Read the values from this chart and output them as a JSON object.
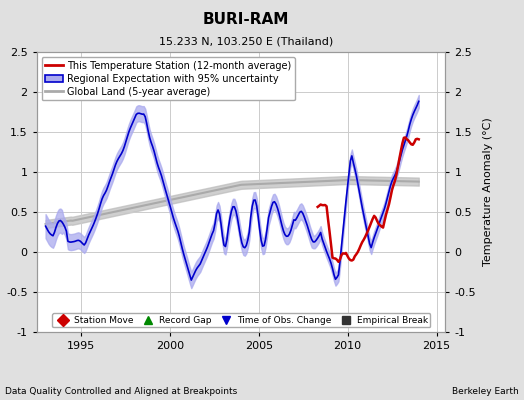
{
  "title": "BURI-RAM",
  "subtitle": "15.233 N, 103.250 E (Thailand)",
  "ylabel": "Temperature Anomaly (°C)",
  "xlabel_left": "Data Quality Controlled and Aligned at Breakpoints",
  "xlabel_right": "Berkeley Earth",
  "ylim": [
    -1.0,
    2.5
  ],
  "xlim": [
    1992.5,
    2015.5
  ],
  "xticks": [
    1995,
    2000,
    2005,
    2010,
    2015
  ],
  "yticks": [
    -1.0,
    -0.5,
    0.0,
    0.5,
    1.0,
    1.5,
    2.0,
    2.5
  ],
  "bg_color": "#e0e0e0",
  "plot_bg_color": "#ffffff",
  "grid_color": "#cccccc",
  "blue_line_color": "#0000cc",
  "blue_fill_color": "#aaaaee",
  "red_line_color": "#cc0000",
  "gray_line_color": "#aaaaaa",
  "legend1_items": [
    "This Temperature Station (12-month average)",
    "Regional Expectation with 95% uncertainty",
    "Global Land (5-year average)"
  ],
  "legend2_items": [
    "Station Move",
    "Record Gap",
    "Time of Obs. Change",
    "Empirical Break"
  ],
  "legend2_colors": [
    "#cc0000",
    "#008800",
    "#0000cc",
    "#333333"
  ],
  "legend2_markers": [
    "D",
    "^",
    "v",
    "s"
  ]
}
